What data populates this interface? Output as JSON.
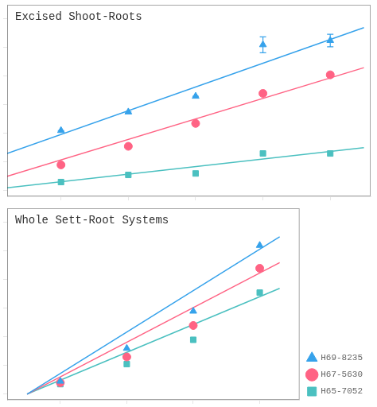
{
  "chart_data": [
    {
      "type": "scatter",
      "annotation": "Excised Shoot-Roots",
      "xlim": [
        0.2,
        5.6
      ],
      "ylim": [
        -0.2,
        6.5
      ],
      "xticks": [
        1,
        2,
        3,
        4,
        5
      ],
      "yticks": [
        0,
        1,
        2,
        3,
        4,
        5,
        6
      ],
      "tick_labels": false,
      "grid": false,
      "series": [
        {
          "marker": "triangle",
          "x": [
            1,
            2,
            3,
            4,
            5
          ],
          "values": [
            2.1,
            2.75,
            3.3,
            5.1,
            5.25
          ],
          "errors": [
            0.0,
            0.0,
            0.0,
            0.28,
            0.22
          ],
          "fit": {
            "x": [
              0.2,
              5.5
            ],
            "values": [
              1.3,
              5.7
            ]
          }
        },
        {
          "marker": "circle",
          "x": [
            1,
            2,
            3,
            4,
            5
          ],
          "values": [
            0.9,
            1.55,
            2.35,
            3.4,
            4.05
          ],
          "fit": {
            "x": [
              0.2,
              5.5
            ],
            "values": [
              0.5,
              4.3
            ]
          }
        },
        {
          "marker": "square",
          "x": [
            1,
            2,
            3,
            4,
            5
          ],
          "values": [
            0.3,
            0.55,
            0.6,
            1.3,
            1.3
          ],
          "fit": {
            "x": [
              0.2,
              5.5
            ],
            "values": [
              0.1,
              1.5
            ]
          }
        }
      ]
    },
    {
      "type": "scatter",
      "annotation": "Whole Sett-Root Systems",
      "xlim": [
        0.2,
        4.6
      ],
      "ylim": [
        -0.2,
        6.5
      ],
      "xticks": [
        1,
        2,
        3,
        4
      ],
      "yticks": [
        0,
        1,
        2,
        3,
        4,
        5,
        6
      ],
      "tick_labels": false,
      "grid": false,
      "legend": "lower right",
      "series": [
        {
          "name": "H69-8235",
          "marker": "triangle",
          "x": [
            1,
            2,
            3,
            4
          ],
          "values": [
            0.45,
            1.6,
            2.9,
            5.2
          ],
          "fit": {
            "x": [
              0.5,
              4.3
            ],
            "values": [
              0.0,
              5.5
            ]
          }
        },
        {
          "name": "H67-5630",
          "marker": "circle",
          "x": [
            1,
            2,
            3,
            4
          ],
          "values": [
            0.4,
            1.3,
            2.4,
            4.4
          ],
          "fit": {
            "x": [
              0.5,
              4.3
            ],
            "values": [
              0.0,
              4.6
            ]
          }
        },
        {
          "name": "H65-7052",
          "marker": "square",
          "x": [
            1,
            2,
            3,
            4
          ],
          "values": [
            0.35,
            1.05,
            1.9,
            3.55
          ],
          "fit": {
            "x": [
              0.5,
              4.3
            ],
            "values": [
              0.0,
              3.7
            ]
          }
        }
      ]
    }
  ]
}
